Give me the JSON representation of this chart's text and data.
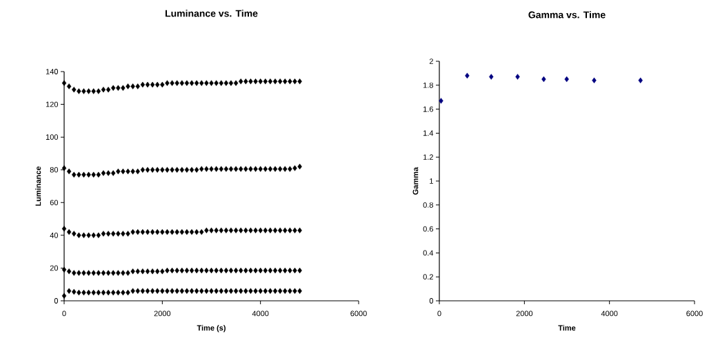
{
  "chart_data": [
    {
      "type": "scatter",
      "title": "Luminance vs. Time",
      "xlabel": "Time (s)",
      "ylabel": "Luminance",
      "marker": "diamond",
      "xlim": [
        0,
        6000
      ],
      "xticks": [
        0,
        2000,
        4000,
        6000
      ],
      "ylim": [
        0,
        140
      ],
      "yticks": [
        0,
        20,
        40,
        60,
        80,
        100,
        120,
        140
      ],
      "x": [
        0,
        100,
        200,
        300,
        400,
        500,
        600,
        700,
        800,
        900,
        1000,
        1100,
        1200,
        1300,
        1400,
        1500,
        1600,
        1700,
        1800,
        1900,
        2000,
        2100,
        2200,
        2300,
        2400,
        2500,
        2600,
        2700,
        2800,
        2900,
        3000,
        3100,
        3200,
        3300,
        3400,
        3500,
        3600,
        3700,
        3800,
        3900,
        4000,
        4100,
        4200,
        4300,
        4400,
        4500,
        4600,
        4700,
        4800
      ],
      "series": [
        {
          "color": "#000000",
          "values": [
            133,
            131,
            129,
            128,
            128,
            128,
            128,
            128,
            129,
            129,
            130,
            130,
            130,
            131,
            131,
            131,
            132,
            132,
            132,
            132,
            132,
            133,
            133,
            133,
            133,
            133,
            133,
            133,
            133,
            133,
            133,
            133,
            133,
            133,
            133,
            133,
            134,
            134,
            134,
            134,
            134,
            134,
            134,
            134,
            134,
            134,
            134,
            134,
            134
          ]
        },
        {
          "color": "#000000",
          "values": [
            81,
            79,
            77,
            77,
            77,
            77,
            77,
            77,
            78,
            78,
            78,
            79,
            79,
            79,
            79,
            79,
            80,
            80,
            80,
            80,
            80,
            80,
            80,
            80,
            80,
            80,
            80,
            80,
            80.5,
            80.5,
            80.5,
            80.5,
            80.5,
            80.5,
            80.5,
            80.5,
            80.5,
            80.5,
            80.5,
            80.5,
            80.5,
            80.5,
            80.5,
            80.5,
            80.5,
            80.5,
            80.5,
            81,
            82
          ]
        },
        {
          "color": "#000000",
          "values": [
            44,
            42,
            41,
            40,
            40,
            40,
            40,
            40,
            41,
            41,
            41,
            41,
            41,
            41,
            42,
            42,
            42,
            42,
            42,
            42,
            42,
            42,
            42,
            42,
            42,
            42,
            42,
            42,
            42,
            43,
            43,
            43,
            43,
            43,
            43,
            43,
            43,
            43,
            43,
            43,
            43,
            43,
            43,
            43,
            43,
            43,
            43,
            43,
            43
          ]
        },
        {
          "color": "#000000",
          "values": [
            19,
            18,
            17,
            17,
            17,
            17,
            17,
            17,
            17,
            17,
            17,
            17,
            17,
            17,
            18,
            18,
            18,
            18,
            18,
            18,
            18,
            18.5,
            18.5,
            18.5,
            18.5,
            18.5,
            18.5,
            18.5,
            18.5,
            18.5,
            18.5,
            18.5,
            18.5,
            18.5,
            18.5,
            18.5,
            18.5,
            18.5,
            18.5,
            18.5,
            18.5,
            18.5,
            18.5,
            18.5,
            18.5,
            18.5,
            18.5,
            18.5,
            18.5
          ]
        },
        {
          "color": "#000000",
          "values": [
            3,
            6,
            5.5,
            5,
            5,
            5,
            5,
            5,
            5,
            5,
            5,
            5,
            5,
            5,
            6,
            6,
            6,
            6,
            6,
            6,
            6,
            6,
            6,
            6,
            6,
            6,
            6,
            6,
            6,
            6,
            6,
            6,
            6,
            6,
            6,
            6,
            6,
            6,
            6,
            6,
            6,
            6,
            6,
            6,
            6,
            6,
            6,
            6,
            6
          ]
        }
      ]
    },
    {
      "type": "scatter",
      "title": "Gamma vs. Time",
      "xlabel": "Time",
      "ylabel": "Gamma",
      "marker": "diamond",
      "xlim": [
        0,
        6000
      ],
      "xticks": [
        0,
        2000,
        4000,
        6000
      ],
      "ylim": [
        0,
        2
      ],
      "yticks": [
        0,
        0.2,
        0.4,
        0.6,
        0.8,
        1,
        1.2,
        1.4,
        1.6,
        1.8,
        2
      ],
      "x": [
        40,
        655,
        1220,
        1840,
        2455,
        2995,
        3640,
        4730
      ],
      "series": [
        {
          "color": "#000080",
          "values": [
            1.67,
            1.88,
            1.87,
            1.87,
            1.85,
            1.85,
            1.84,
            1.84
          ]
        }
      ]
    }
  ]
}
